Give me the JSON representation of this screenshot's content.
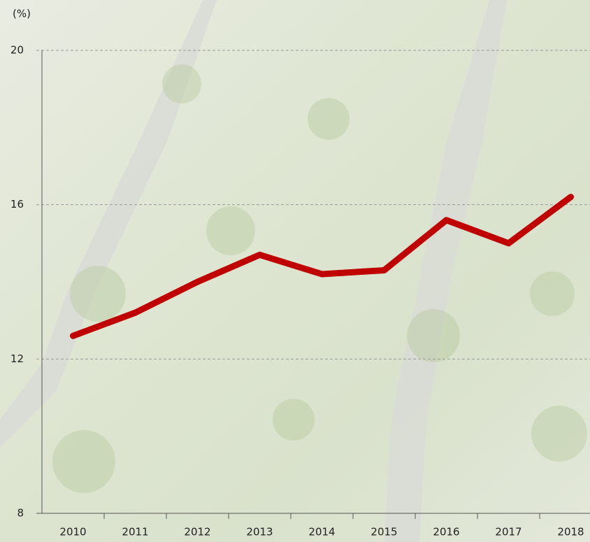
{
  "chart_data": {
    "type": "line",
    "y_label": "(%)",
    "categories": [
      "2010",
      "2011",
      "2012",
      "2013",
      "2014",
      "2015",
      "2016",
      "2017",
      "2018"
    ],
    "values": [
      12.6,
      13.2,
      14.0,
      14.7,
      14.2,
      14.3,
      15.6,
      15.0,
      16.2
    ],
    "color": "#c00000",
    "ylim": [
      8,
      20
    ],
    "yticks": [
      8,
      12,
      16,
      20
    ],
    "grid": true
  }
}
